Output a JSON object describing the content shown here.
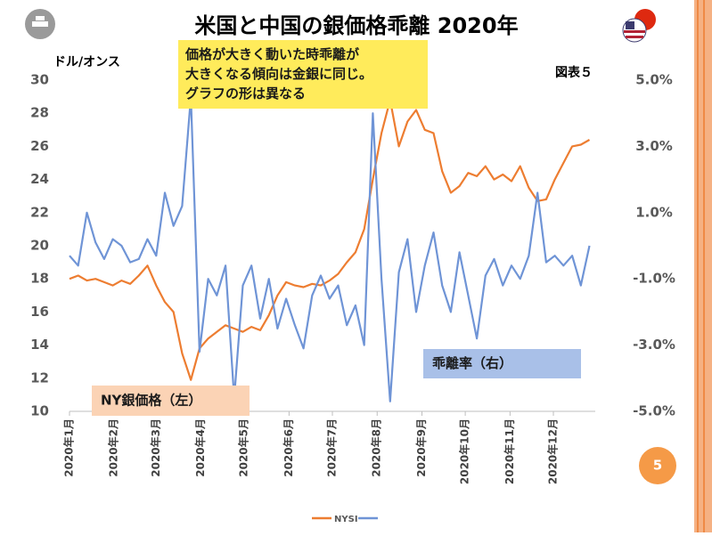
{
  "chart_data": {
    "type": "line",
    "title": "米国と中国の銀価格乖離 2020年",
    "y_axis_label": "ドル/オンス",
    "figure_label": "図表５",
    "annotations": [
      {
        "lines": [
          "価格が大きく動いた時乖離が",
          "大きくなる傾向は金銀に同じ。",
          "グラフの形は異なる"
        ],
        "color": "#ffeb5b"
      },
      {
        "lines": [
          "乖離率（右）"
        ],
        "color": "#a9c0e8"
      },
      {
        "lines": [
          "NY銀価格（左）"
        ],
        "color": "#fbd3b5"
      }
    ],
    "x": [
      0,
      6,
      12,
      18,
      24,
      30,
      36,
      42,
      48,
      54,
      60,
      66,
      72,
      78,
      84,
      90,
      96,
      102,
      108,
      114,
      120,
      126,
      132,
      138,
      144,
      150,
      156,
      162,
      168,
      174,
      180,
      186,
      192,
      198,
      204,
      210,
      216,
      222,
      228,
      234,
      240,
      246,
      252,
      258,
      264,
      270,
      276,
      282,
      288,
      294,
      300,
      306,
      312,
      318,
      324,
      330,
      336,
      342,
      348,
      354,
      360
    ],
    "xlim": [
      0,
      364
    ],
    "xticks": [
      {
        "value": 0,
        "label": "2020年1月"
      },
      {
        "value": 31,
        "label": "2020年2月"
      },
      {
        "value": 60,
        "label": "2020年3月"
      },
      {
        "value": 91,
        "label": "2020年4月"
      },
      {
        "value": 121,
        "label": "2020年5月"
      },
      {
        "value": 152,
        "label": "2020年6月"
      },
      {
        "value": 182,
        "label": "2020年7月"
      },
      {
        "value": 213,
        "label": "2020年8月"
      },
      {
        "value": 244,
        "label": "2020年9月"
      },
      {
        "value": 274,
        "label": "2020年10月"
      },
      {
        "value": 305,
        "label": "2020年11月"
      },
      {
        "value": 335,
        "label": "2020年12月"
      }
    ],
    "ylim": [
      10,
      30
    ],
    "yticks": [
      10,
      12,
      14,
      16,
      18,
      20,
      22,
      24,
      26,
      28,
      30
    ],
    "y2lim": [
      -5,
      5
    ],
    "y2ticks": [
      {
        "value": -5,
        "label": "-5.0%"
      },
      {
        "value": -3,
        "label": "-3.0%"
      },
      {
        "value": -1,
        "label": "-1.0%"
      },
      {
        "value": 1,
        "label": "1.0%"
      },
      {
        "value": 3,
        "label": "3.0%"
      },
      {
        "value": 5,
        "label": "5.0%"
      }
    ],
    "series": [
      {
        "name": "NYSI",
        "color": "#ed7d31",
        "values": [
          18.0,
          18.2,
          17.9,
          18.0,
          17.8,
          17.6,
          17.9,
          17.7,
          18.2,
          18.8,
          17.6,
          16.6,
          16.0,
          13.5,
          11.9,
          13.8,
          14.4,
          14.8,
          15.2,
          15.0,
          14.8,
          15.1,
          14.9,
          15.8,
          17.0,
          17.8,
          17.6,
          17.5,
          17.7,
          17.6,
          17.9,
          18.3,
          19.0,
          19.6,
          21.0,
          24.0,
          26.8,
          28.8,
          26.0,
          27.5,
          28.2,
          27.0,
          26.8,
          24.5,
          23.2,
          23.6,
          24.4,
          24.2,
          24.8,
          24.0,
          24.3,
          23.9,
          24.8,
          23.5,
          22.7,
          22.8,
          24.0,
          25.0,
          26.0,
          26.1,
          26.4
        ]
      },
      {
        "color": "#6f94d6",
        "axis": "y2",
        "values": [
          -0.3,
          -0.6,
          1.0,
          0.1,
          -0.4,
          0.2,
          0.0,
          -0.5,
          -0.4,
          0.2,
          -0.3,
          1.6,
          0.6,
          1.2,
          4.5,
          -3.2,
          -1.0,
          -1.5,
          -0.6,
          -4.6,
          -1.2,
          -0.6,
          -2.2,
          -1.0,
          -2.5,
          -1.6,
          -2.4,
          -3.1,
          -1.5,
          -0.9,
          -1.6,
          -1.2,
          -2.4,
          -1.8,
          -3.0,
          4.0,
          -1.0,
          -4.7,
          -0.8,
          0.2,
          -2.0,
          -0.6,
          0.4,
          -1.2,
          -2.0,
          -0.2,
          -1.5,
          -2.8,
          -0.9,
          -0.4,
          -1.2,
          -0.6,
          -1.0,
          -0.3,
          1.6,
          -0.5,
          -0.3,
          -0.6,
          -0.3,
          -1.2,
          0.0
        ]
      }
    ]
  },
  "page_number": "5"
}
